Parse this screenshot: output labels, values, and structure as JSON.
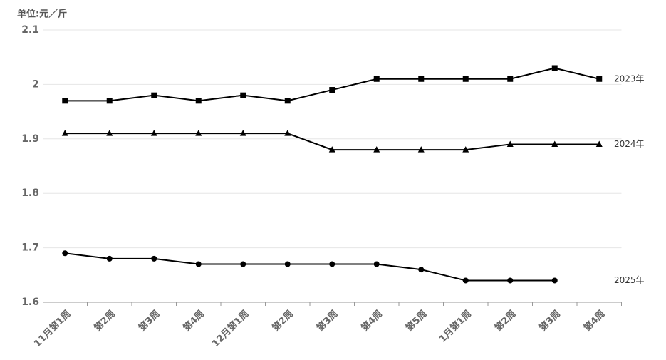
{
  "chart_data": {
    "type": "line",
    "y_label": "单位:元／斤",
    "categories": [
      "11月第1周",
      "第2周",
      "第3周",
      "第4周",
      "12月第1周",
      "第2周",
      "第3周",
      "第4周",
      "第5周",
      "1月第1周",
      "第2周",
      "第3周",
      "第4周"
    ],
    "series": [
      {
        "name": "2023年",
        "color": "#000000",
        "marker": "square",
        "values": [
          1.97,
          1.97,
          1.98,
          1.97,
          1.98,
          1.97,
          1.99,
          2.01,
          2.01,
          2.01,
          2.01,
          2.03,
          2.01
        ]
      },
      {
        "name": "2024年",
        "color": "#000000",
        "marker": "triangle",
        "values": [
          1.91,
          1.91,
          1.91,
          1.91,
          1.91,
          1.91,
          1.88,
          1.88,
          1.88,
          1.88,
          1.89,
          1.89,
          1.89
        ]
      },
      {
        "name": "2025年",
        "color": "#000000",
        "marker": "circle",
        "values": [
          1.69,
          1.68,
          1.68,
          1.67,
          1.67,
          1.67,
          1.67,
          1.67,
          1.66,
          1.64,
          1.64,
          1.64,
          null
        ]
      }
    ],
    "ylim": [
      1.6,
      2.1
    ],
    "yticks": [
      1.6,
      1.7,
      1.8,
      1.9,
      2,
      2.1
    ],
    "grid": true
  }
}
